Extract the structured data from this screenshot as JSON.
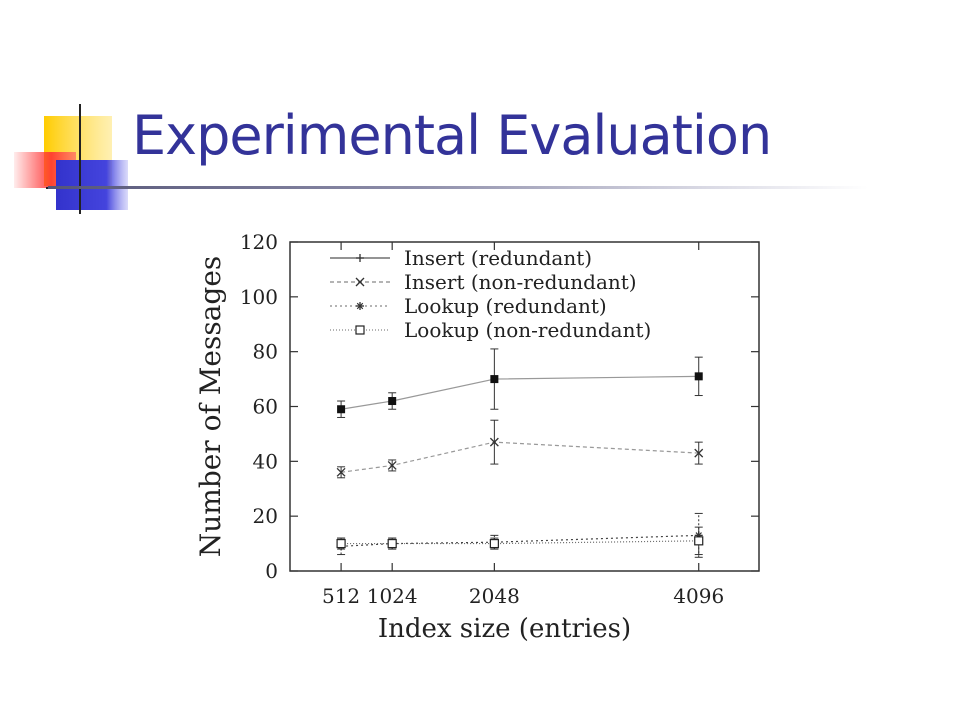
{
  "slide": {
    "title": "Experimental Evaluation"
  },
  "logo": {
    "icon": "slide-logo-squares-icon"
  },
  "chart_data": {
    "type": "line",
    "xlabel": "Index size (entries)",
    "ylabel": "Number of Messages",
    "x": [
      512,
      1024,
      2048,
      4096
    ],
    "x_tick_labels": [
      "512",
      "1024",
      "2048",
      "4096"
    ],
    "xlim": [
      0,
      4700
    ],
    "ylim": [
      0,
      120
    ],
    "y_ticks": [
      0,
      20,
      40,
      60,
      80,
      100,
      120
    ],
    "legend_position": "top-left",
    "grid": false,
    "series": [
      {
        "name": "Insert (redundant)",
        "marker": "filled-square",
        "values": [
          59,
          62,
          70,
          71
        ],
        "err_low": [
          56,
          59,
          59,
          64
        ],
        "err_high": [
          62,
          65,
          81,
          78
        ],
        "color": "#999999"
      },
      {
        "name": "Insert (non-redundant)",
        "marker": "x",
        "values": [
          36,
          38.5,
          47,
          43
        ],
        "err_low": [
          34,
          36.5,
          39,
          39
        ],
        "err_high": [
          38,
          40.5,
          55,
          47
        ],
        "color": "#999999"
      },
      {
        "name": "Lookup (redundant)",
        "marker": "star",
        "values": [
          9,
          10,
          10.5,
          13
        ],
        "err_low": [
          6,
          8,
          8,
          5
        ],
        "err_high": [
          12,
          12,
          13,
          21
        ],
        "color": "#444444"
      },
      {
        "name": "Lookup (non-redundant)",
        "marker": "open-square",
        "values": [
          10,
          10,
          10,
          11
        ],
        "err_low": [
          8,
          8,
          8,
          6
        ],
        "err_high": [
          12,
          12,
          12,
          16
        ],
        "color": "#666666"
      }
    ]
  }
}
